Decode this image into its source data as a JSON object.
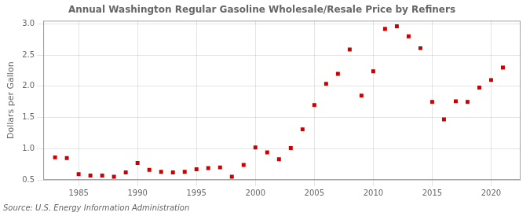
{
  "chart_data": {
    "type": "scatter",
    "title": "Annual Washington Regular Gasoline Wholesale/Resale Price by Refiners",
    "ylabel": "Dollars per Gallon",
    "source": "Source: U.S. Energy Information Administration",
    "x": [
      1983,
      1984,
      1985,
      1986,
      1987,
      1988,
      1989,
      1990,
      1991,
      1992,
      1993,
      1994,
      1995,
      1996,
      1997,
      1998,
      1999,
      2000,
      2001,
      2002,
      2003,
      2004,
      2005,
      2006,
      2007,
      2008,
      2009,
      2010,
      2011,
      2012,
      2013,
      2014,
      2015,
      2016,
      2017,
      2018,
      2019,
      2020,
      2021
    ],
    "values": [
      0.86,
      0.85,
      0.59,
      0.57,
      0.57,
      0.55,
      0.62,
      0.77,
      0.66,
      0.63,
      0.62,
      0.63,
      0.67,
      0.69,
      0.7,
      0.55,
      0.74,
      1.02,
      0.94,
      0.83,
      1.01,
      1.31,
      1.7,
      2.04,
      2.2,
      2.59,
      1.85,
      2.24,
      2.92,
      2.96,
      2.8,
      2.61,
      1.75,
      1.47,
      1.76,
      1.75,
      1.98,
      2.1,
      2.3
    ],
    "color": "#cc0000",
    "marker": "square",
    "xlim": [
      1982,
      2022.5
    ],
    "ylim": [
      0.5,
      3.05
    ],
    "xticks": [
      1985,
      1990,
      1995,
      2000,
      2005,
      2010,
      2015,
      2020
    ],
    "yticks": [
      0.5,
      {
        "value": 1.0,
        "label": "1.0"
      },
      1.5,
      {
        "value": 2.0,
        "label": "2.0"
      },
      2.5,
      {
        "value": 3.0,
        "label": "3.0"
      }
    ],
    "grid": true
  }
}
